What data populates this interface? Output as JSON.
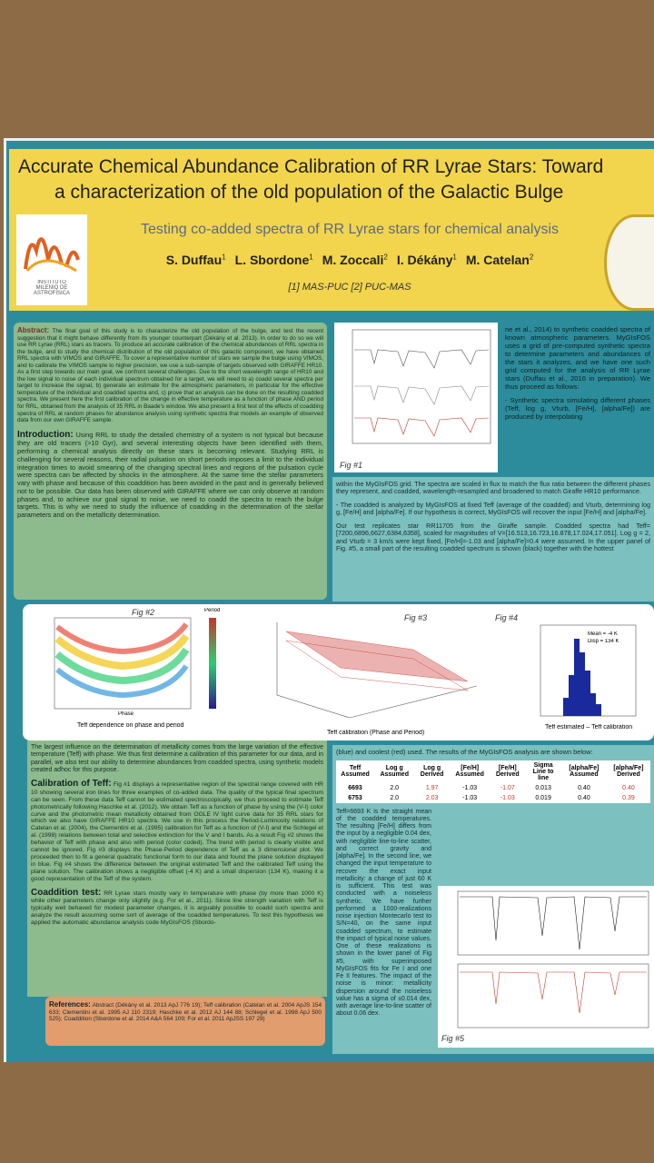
{
  "header": {
    "title_line1": "Accurate Chemical Abundance Calibration of RR Lyrae Stars: Toward",
    "title_line2": "a characterization of the old population of the Galactic Bulge",
    "subtitle": "Testing co-added spectra of RR Lyrae stars for chemical analysis",
    "authors": [
      {
        "name": "S. Duffau",
        "aff": "1"
      },
      {
        "name": "L. Sbordone",
        "aff": "1"
      },
      {
        "name": "M. Zoccali",
        "aff": "2"
      },
      {
        "name": "I. Dékány",
        "aff": "1"
      },
      {
        "name": "M. Catelan",
        "aff": "2"
      }
    ],
    "affiliations": "[1] MAS-PUC [2] PUC-MAS",
    "logo": "INSTITUTO MILENIO DE ASTROFÍSICA"
  },
  "abstract": {
    "label": "Abstract:",
    "text": "The final goal of this study is to characterize the old population of the bulge, and test the recent suggestion that it might behave differently from its younger counterpart (Dékány et al. 2013). In order to do so we will use RR Lyrae (RRL) stars as tracers. To produce an accurate calibration of the chemical abundances of RRL spectra in the bulge, and to study the chemical distribution of the old population of this galactic component, we have obtained RRL spectra with VIMOS and GIRAFFE. To cover a representative number of stars we sample the bulge using VIMOS, and to calibrate the VIMOS sample to higher precision, we use a sub-sample of targets observed with GIRAFFE HR10. As a first step towards our main goal, we confront several challenges. Due to the short wavelength range of HR10 and the low signal to noise of each individual spectrum obtained for a target, we will need to a) coadd several spectra per target to increase the signal, b) generate an estimate for the atmospheric parameters, in particular for the effective temperature of the individual and coadded spectra and, c) prove that an analysis can be done on the resulting coadded spectra. We present here the first calibration of the change in effective temperature as a function of phase AND period for RRL, obtained from the analysis of 35 RRL in Baade's window. We also present a first test of the effects of coadding spectra of RRL at random phases for abundance analysis using synthetic spectra that models an example of observed data from our own GIRAFFE sample."
  },
  "introduction": {
    "heading": "Introduction:",
    "text": "Using RRL to study the detailed chemistry of a system is not typical but because they are old tracers (>10 Gyr), and several interesting objects have been identified with them, performing a chemical analysis directly on these stars is becoming relevant. Studying RRL is challenging for several reasons, their radial pulsation on short periods imposes a limit to the individual integration times to avoid smearing of the changing spectral lines and regions of the pulsation cycle were spectra can be affected by shocks in the atmosphere. At the same time the stellar parameters vary with phase and because of this coaddition has been avoided in the past and is generally believed not to be possible. Our data has been observed with GIRAFFE where we can only observe at random phases and, to achieve our goal signal to noise, we need to coadd the spectra to reach the bulge targets. This is why we need to study the influence of coadding in the determination of the stellar parameters and on the metallicity determination."
  },
  "method": {
    "text1": "ne et al., 2014) to synthetic coadded spectra of known atmospheric parameters. MyGIsFOS uses a grid of pre-computed synthetic spectra to determine parameters and abundances of the stars it analyzes, and we have one such grid computed for the analysis of RR Lyrae stars (Duffau et al., 2016 in preparation). We thus proceed as follows:",
    "text2": "- Synthetic spectra simulating different phases (Teff, log g, Vturb, [Fe/H], [alpha/Fe]) are produced by interpolating",
    "text3": "within the MyGIsFOS grid. The spectra are scaled in flux to match the flux ratio between the different phases they represent, and coadded, wavelength-resampled and broadened to match Giraffe HR10 performance.",
    "text4": "- The coadded is analyzed by MyGIsFOS at fixed Teff (average of the coadded) and Vturb, determining log g, [Fe/H] and [alpha/Fe]. If our hypothesis is correct, MyGIsFOS will recover the input [Fe/H] and [alpha/Fe].",
    "text5": "Our test replicates star RR11705 from the Giraffe sample. Coadded spectra had Teff=[7200,6896,6627,6384,6358], scaled for magnitudes of V=[16.513,16.723,16.878,17.024,17.051]. Log g = 2, and Vturb = 3 km/s were kept fixed, [Fe/H]=-1.03 and [alpha/Fe]=0.4 were assumed. In the upper panel of Fig. #5, a small part of the resulting coadded spectrum is shown (black) together with the hottest"
  },
  "figures": {
    "fig1": "Fig #1",
    "fig2": "Fig #2",
    "fig2_caption": "Teff dependence on phase and period",
    "fig2_cbar": "Period",
    "fig2_x": "Phase",
    "fig3": "Fig #3",
    "fig3_caption": "Teff calibration (Phase and Period)",
    "fig4": "Fig #4",
    "fig4_caption": "Teff estimated – Teff calibration",
    "fig4_mean": "Mean = -4 K",
    "fig4_disp": "Disp = 134 K",
    "fig5": "Fig #5"
  },
  "teff_section": {
    "lead": "The largest influence on the determination of metallicity comes from the large variation of the effective temperature (Teff) with phase. We thus first determine a calibration of this parameter for our data, and in parallel, we also test our ability to determine abundances from coadded spectra, using synthetic models created adhoc for this purpose.",
    "heading": "Calibration of Teff:",
    "text": "Fig #1 displays a representative region of the spectral range covered with HR 10 showing several iron lines for three examples of co-added data. The quality of the typical final spectrum can be seen. From these data Teff cannot be estimated spectroscopically, we thus proceed to estimate Teff photometrically following Haschke et al. (2012). We obtain Teff as a function of phase by using the (V-I) color curve and the photometric mean metallicity obtained from OGLE IV light curve data for 35 RRL stars for which we also have GIRAFFE HR10 spectra. We use in this process the Period-Luminosity relations of Catelan et al. (2004), the Clementini et al. (1995) calibration for Teff as a function of (V-I) and the Schlegel et al. (1998) relations between total and selective extinction for the V and I bands. As a result Fig #2 shows the behavior of Teff with phase and also with period (color coded). The trend with period is clearly visible and cannot be ignored. Fig #3 displays the Phase-Period dependence of Teff as a 3 dimensional plot. We proceeded then to fit a general quadratic functional form to our data and found the plane solution displayed in blue. Fig #4 shows the difference between the original estimated Teff and the calibrated Teff using the plane solution. The calibration shows a negligible offset (-4 K) and a small dispersion (134 K), making it a good representation of the Teff of the system."
  },
  "coaddition": {
    "heading": "Coaddition test:",
    "text": "RR Lyrae stars mostly vary in temperature with phase (by more than 1000 K) while other parameters change only slightly (e.g. For et al., 2011). Since line strength variation with Teff is typically well behaved for modest parameter changes, it is arguably possible to coadd such spectra and analyze the result assuming some sort of average of the coadded temperatures. To test this hypothesis we applied the automatic abundance analysis code MyGIsFOS (Sbordo-"
  },
  "references": {
    "heading": "References:",
    "text": "Abstract (Dékány et al. 2013 ApJ 776 19); Teff calibration (Catelan et al. 2004 ApJS 154 633; Clementini et al. 1995 AJ 110 2319; Haschke et al. 2012 AJ 144 88; Schlegel et al. 1998 ApJ 500 525); Coaddition (Sbordone et al. 2014 A&A 564 109; For et al. 2011 ApJSS 197 29)"
  },
  "results": {
    "intro": "(blue) and coolest (red) used. The results of the MyGIsFOS analysis are shown below:",
    "table": {
      "header": [
        "Teff Assumed",
        "Log g Assumed",
        "Log g Derived",
        "[Fe/H] Assumed",
        "[Fe/H] Derived",
        "Sigma Line to line",
        "[alpha/Fe] Assumed",
        "[alpha/Fe] Derived"
      ],
      "rows": [
        [
          "6693",
          "2.0",
          "1.97",
          "-1.03",
          "-1.07",
          "0.013",
          "0.40",
          "0.40"
        ],
        [
          "6753",
          "2.0",
          "2.03",
          "-1.03",
          "-1.03",
          "0.019",
          "0.40",
          "0.39"
        ]
      ]
    },
    "text": "Teff=6693 K is the straight mean of the coadded temperatures. The resulting [Fe/H] differs from the input by a negligible 0.04 dex, with negligible line-to-line scatter, and correct gravity and [alpha/Fe]. In the second line, we changed the input temperature to recover the exact input metallicity: a change of just 60 K is sufficient. This test was conducted with a noiseless synthetic. We have further performed a 1000-realizations noise injection Montecarlo test to S/N=40, on the same input coadded spectrum, to estimate the impact of typical noise values. One of these realizations is shown in the lower panel of Fig #5, with superimposed MyGIsFOS fits for Fe I and one Fe II features. The impact of the noise is minor: metallicity dispersion around the noiseless value has a sigma of ±0.014 dex, with average line-to-line scatter of about 0.06 dex."
  }
}
